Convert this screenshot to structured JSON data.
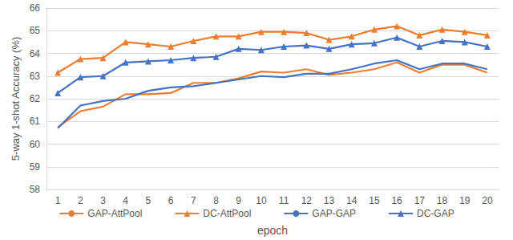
{
  "chart_data": {
    "type": "line",
    "x_label": "epoch",
    "y_label": "5-way 1-shot Accuracy (%)",
    "categories": [
      "1",
      "2",
      "3",
      "4",
      "5",
      "6",
      "7",
      "8",
      "9",
      "10",
      "11",
      "12",
      "13",
      "14",
      "15",
      "16",
      "17",
      "18",
      "19",
      "20"
    ],
    "ylim": [
      58,
      66
    ],
    "yticks": [
      58,
      59,
      60,
      61,
      62,
      63,
      64,
      65,
      66
    ],
    "grid": true,
    "legend": "bottom",
    "series": [
      {
        "name": "GAP-AttPool",
        "color": "#ED7D31",
        "marker": "none",
        "values": [
          60.75,
          61.45,
          61.65,
          62.2,
          62.2,
          62.25,
          62.7,
          62.7,
          62.9,
          63.2,
          63.15,
          63.3,
          63.05,
          63.15,
          63.3,
          63.6,
          63.15,
          63.5,
          63.5,
          63.15
        ]
      },
      {
        "name": "DC-AttPool",
        "color": "#ED7D31",
        "marker": "triangle",
        "values": [
          63.15,
          63.75,
          63.8,
          64.5,
          64.4,
          64.3,
          64.55,
          64.75,
          64.75,
          64.95,
          64.95,
          64.9,
          64.6,
          64.75,
          65.05,
          65.2,
          64.8,
          65.05,
          64.95,
          64.8
        ]
      },
      {
        "name": "GAP-GAP",
        "color": "#4472C4",
        "marker": "none",
        "values": [
          60.7,
          61.7,
          61.9,
          62.0,
          62.35,
          62.5,
          62.55,
          62.7,
          62.85,
          63.0,
          62.95,
          63.1,
          63.1,
          63.3,
          63.55,
          63.7,
          63.3,
          63.55,
          63.55,
          63.3
        ]
      },
      {
        "name": "DC-GAP",
        "color": "#4472C4",
        "marker": "triangle",
        "values": [
          62.25,
          62.95,
          63.0,
          63.6,
          63.65,
          63.7,
          63.8,
          63.85,
          64.2,
          64.15,
          64.3,
          64.35,
          64.2,
          64.4,
          64.45,
          64.7,
          64.3,
          64.55,
          64.5,
          64.3
        ]
      }
    ]
  }
}
